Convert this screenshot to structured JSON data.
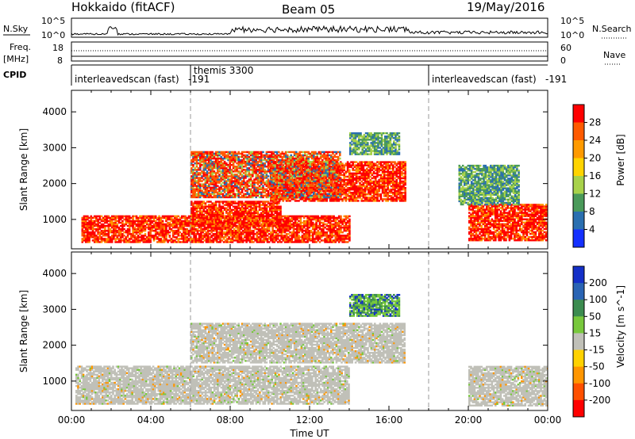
{
  "header": {
    "station": "Hokkaido (fitACF)",
    "beam": "Beam 05",
    "date": "19/May/2016"
  },
  "nsky": {
    "label": "N.Sky",
    "ticks": [
      "10^5",
      "10^0"
    ],
    "right_ticks": [
      "10^5",
      "10^0"
    ],
    "right_label": "N.Search"
  },
  "freq": {
    "label": "Freq.",
    "unit": "[MHz]",
    "ticks": [
      "18",
      "8"
    ],
    "right_ticks": [
      "60",
      "0"
    ],
    "right_label": "Nave"
  },
  "cpid": {
    "label": "CPID",
    "segments": [
      {
        "text": "interleavedscan (fast)",
        "code": "-191",
        "start_hour": 0
      },
      {
        "text": "themis 3300",
        "start_hour": 6
      },
      {
        "text": "interleavedscan (fast)",
        "code": "-191",
        "start_hour": 18
      }
    ]
  },
  "chart_data": [
    {
      "type": "heatmap",
      "title": "",
      "xlabel": "",
      "ylabel": "Slant Range [km]",
      "x_range_hours": [
        0,
        24
      ],
      "ylim": [
        180,
        4600
      ],
      "yticks": [
        1000,
        2000,
        3000,
        4000
      ],
      "colorbar": {
        "label": "Power [dB]",
        "ticks": [
          "28",
          "24",
          "20",
          "16",
          "12",
          "8",
          "4"
        ],
        "colors": [
          "#ff0000",
          "#ff5a00",
          "#ff9a00",
          "#ffd400",
          "#a8d24a",
          "#4a9a5a",
          "#2a6fb0",
          "#1430ff"
        ]
      },
      "echo_regions": [
        {
          "start": 0.5,
          "end": 14.0,
          "min_km": 350,
          "max_km": 1100,
          "level": "strong"
        },
        {
          "start": 6.0,
          "end": 10.5,
          "min_km": 800,
          "max_km": 1500,
          "level": "strong"
        },
        {
          "start": 10.0,
          "end": 16.8,
          "min_km": 1500,
          "max_km": 2600,
          "level": "strong"
        },
        {
          "start": 6.0,
          "end": 13.5,
          "min_km": 1600,
          "max_km": 2900,
          "level": "medium"
        },
        {
          "start": 14.0,
          "end": 16.5,
          "min_km": 2800,
          "max_km": 3400,
          "level": "weak"
        },
        {
          "start": 20.0,
          "end": 24.0,
          "min_km": 400,
          "max_km": 1400,
          "level": "strong"
        },
        {
          "start": 19.5,
          "end": 22.5,
          "min_km": 1400,
          "max_km": 2500,
          "level": "weak"
        }
      ]
    },
    {
      "type": "heatmap",
      "title": "",
      "xlabel": "Time UT",
      "ylabel": "Slant Range [km]",
      "x_range_hours": [
        0,
        24
      ],
      "ylim": [
        180,
        4600
      ],
      "yticks": [
        1000,
        2000,
        3000,
        4000
      ],
      "xticks": [
        "00:00",
        "04:00",
        "08:00",
        "12:00",
        "16:00",
        "20:00",
        "00:00"
      ],
      "colorbar": {
        "label": "Velocity [m s^-1]",
        "ticks": [
          "200",
          "100",
          "50",
          "15",
          "-15",
          "-50",
          "-100",
          "-200"
        ],
        "colors": [
          "#1430c8",
          "#2a64b4",
          "#3c8c50",
          "#78c83c",
          "#c0c0b8",
          "#ffd200",
          "#ff9600",
          "#ff5000",
          "#ff0000"
        ]
      },
      "echo_regions": [
        {
          "start": 0.2,
          "end": 14.0,
          "min_km": 350,
          "max_km": 1400,
          "level": "gray"
        },
        {
          "start": 6.0,
          "end": 16.8,
          "min_km": 1500,
          "max_km": 2600,
          "level": "gray"
        },
        {
          "start": 14.0,
          "end": 16.5,
          "min_km": 2800,
          "max_km": 3400,
          "level": "green"
        },
        {
          "start": 20.0,
          "end": 24.0,
          "min_km": 300,
          "max_km": 1400,
          "level": "gray"
        }
      ]
    }
  ]
}
